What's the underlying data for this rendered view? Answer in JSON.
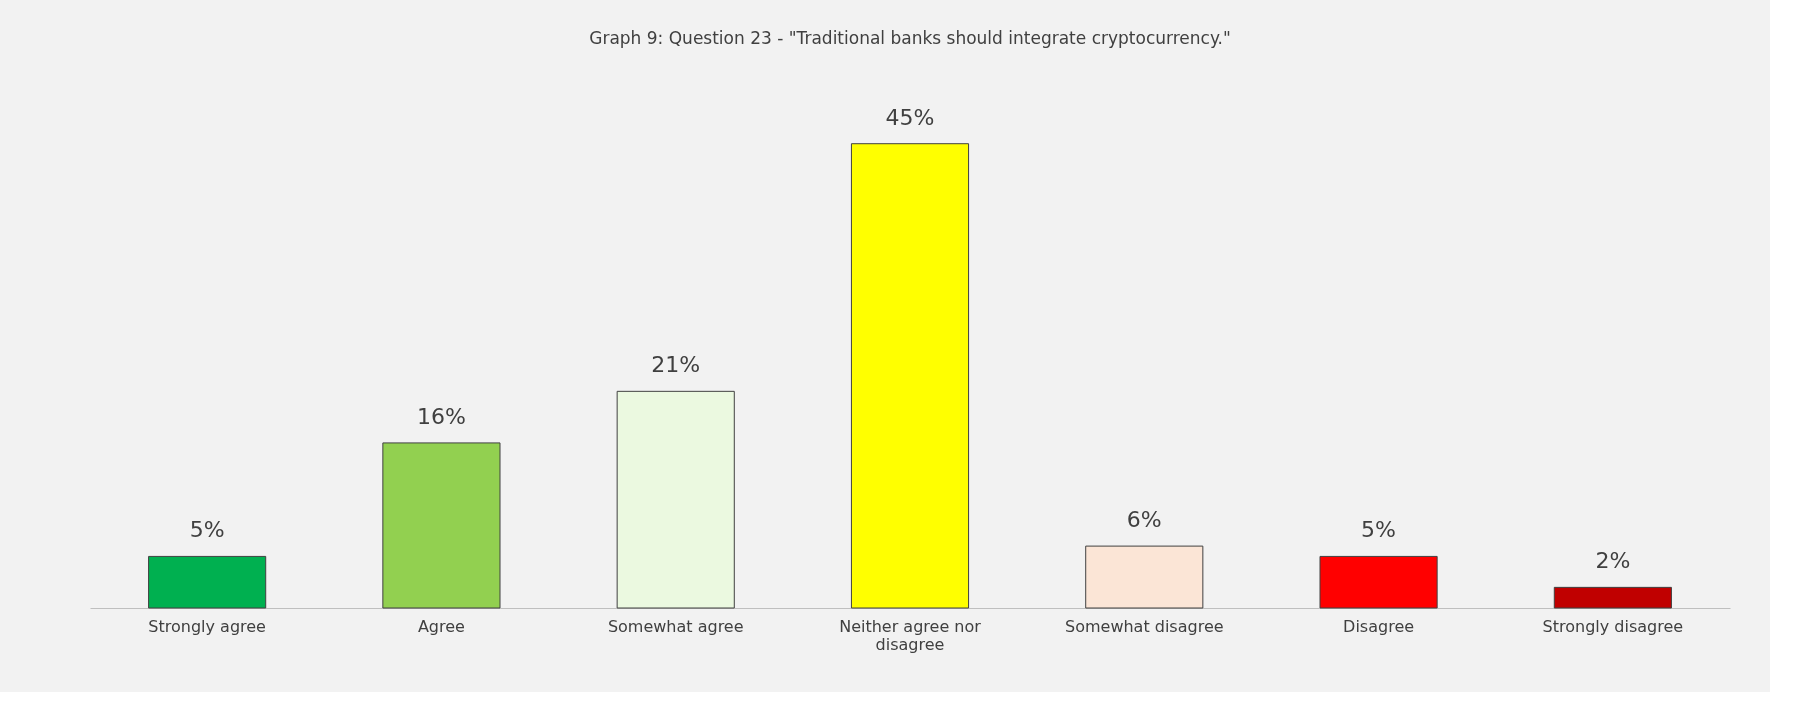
{
  "chart_data": {
    "type": "bar",
    "title": "Graph 9: Question 23 - \"Traditional banks should integrate cryptocurrency.\"",
    "categories": [
      "Strongly agree",
      "Agree",
      "Somewhat agree",
      "Neither agree nor disagree",
      "Somewhat disagree",
      "Disagree",
      "Strongly disagree"
    ],
    "values": [
      5,
      16,
      21,
      45,
      6,
      5,
      2
    ],
    "colors": [
      "#00b050",
      "#92d050",
      "#ebf9e0",
      "#ffff00",
      "#fbe5d6",
      "#ff0000",
      "#c00000"
    ],
    "value_labels": [
      "5%",
      "16%",
      "21%",
      "45%",
      "6%",
      "5%",
      "2%"
    ]
  }
}
